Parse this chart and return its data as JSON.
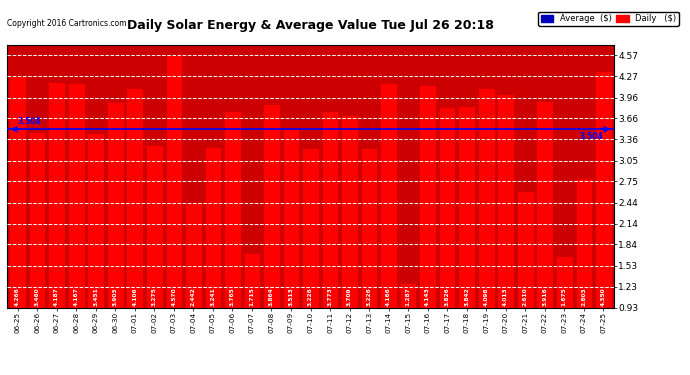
{
  "title": "Daily Solar Energy & Average Value Tue Jul 26 20:18",
  "copyright": "Copyright 2016 Cartronics.com",
  "average_label": "3.504",
  "average_value": 3.504,
  "categories": [
    "06-25",
    "06-26",
    "06-27",
    "06-28",
    "06-29",
    "06-30",
    "07-01",
    "07-02",
    "07-03",
    "07-04",
    "07-05",
    "07-06",
    "07-07",
    "07-08",
    "07-09",
    "07-10",
    "07-11",
    "07-12",
    "07-13",
    "07-14",
    "07-15",
    "07-16",
    "07-17",
    "07-18",
    "07-19",
    "07-20",
    "07-21",
    "07-22",
    "07-23",
    "07-24",
    "07-25"
  ],
  "values": [
    4.266,
    3.46,
    4.187,
    4.167,
    3.451,
    3.903,
    4.106,
    3.275,
    4.57,
    2.442,
    3.241,
    3.765,
    1.715,
    3.864,
    3.513,
    3.226,
    3.773,
    3.709,
    3.226,
    4.166,
    1.287,
    4.143,
    3.826,
    3.842,
    4.098,
    4.013,
    2.61,
    3.916,
    1.675,
    2.803,
    4.35
  ],
  "bar_color": "#ff0000",
  "bar_edge_color": "#cc0000",
  "avg_line_color": "#0000ff",
  "grid_color": "#ffffff",
  "plot_bg_color": "#cc0000",
  "legend_avg_color": "#0000bb",
  "legend_daily_color": "#ff0000",
  "yticks": [
    0.93,
    1.23,
    1.53,
    1.84,
    2.14,
    2.44,
    2.75,
    3.05,
    3.36,
    3.66,
    3.96,
    4.27,
    4.57
  ],
  "ylim_min": 0.93,
  "ylim_max": 4.72,
  "bar_bottom": 0.93
}
